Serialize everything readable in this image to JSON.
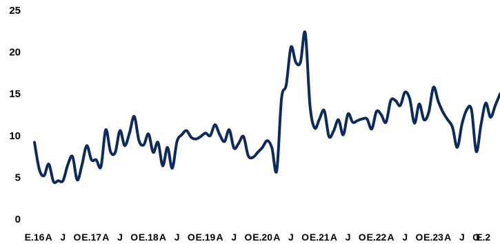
{
  "chart_data": {
    "type": "line",
    "title": "",
    "xlabel": "",
    "ylabel": "",
    "ylim": [
      0,
      25
    ],
    "yticks": [
      0,
      5,
      10,
      15,
      20,
      25
    ],
    "grid": false,
    "legend": "none",
    "line_color": "#0d2a5c",
    "x_tick_labels": [
      "E.16",
      "A",
      "J",
      "O",
      "E.17",
      "A",
      "J",
      "O",
      "E.18",
      "A",
      "J",
      "O",
      "E.19",
      "A",
      "J",
      "O",
      "E.20",
      "A",
      "J",
      "O",
      "E.21",
      "A",
      "J",
      "O",
      "E.22",
      "A",
      "J",
      "O",
      "E.23",
      "A",
      "J",
      "O",
      "E.2"
    ],
    "series": [
      {
        "values": [
          9.2,
          6.0,
          5.2,
          6.6,
          4.5,
          4.6,
          4.6,
          6.5,
          7.5,
          4.7,
          6.5,
          8.8,
          7.1,
          7.1,
          6.3,
          10.7,
          8.1,
          8.0,
          10.6,
          8.8,
          10.3,
          12.3,
          9.4,
          8.9,
          10.2,
          8.0,
          9.2,
          6.4,
          8.6,
          6.1,
          9.3,
          10.1,
          10.6,
          9.8,
          9.6,
          9.9,
          10.3,
          10.0,
          11.3,
          10.1,
          9.3,
          10.7,
          8.5,
          9.1,
          9.9,
          7.6,
          7.4,
          8.0,
          8.6,
          9.4,
          8.5,
          5.8,
          14.4,
          16.1,
          20.6,
          18.8,
          18.8,
          22.3,
          13.6,
          10.9,
          12.0,
          13.0,
          9.9,
          10.6,
          11.9,
          10.1,
          12.6,
          11.6,
          11.8,
          12.0,
          12.0,
          10.8,
          12.9,
          12.5,
          11.6,
          14.2,
          14.2,
          13.6,
          15.2,
          14.4,
          11.5,
          13.8,
          11.9,
          12.8,
          15.8,
          14.1,
          12.8,
          11.9,
          11.0,
          8.6,
          11.4,
          13.1,
          13.1,
          8.1,
          11.3,
          13.9,
          12.2,
          13.6,
          15.0
        ]
      }
    ]
  }
}
